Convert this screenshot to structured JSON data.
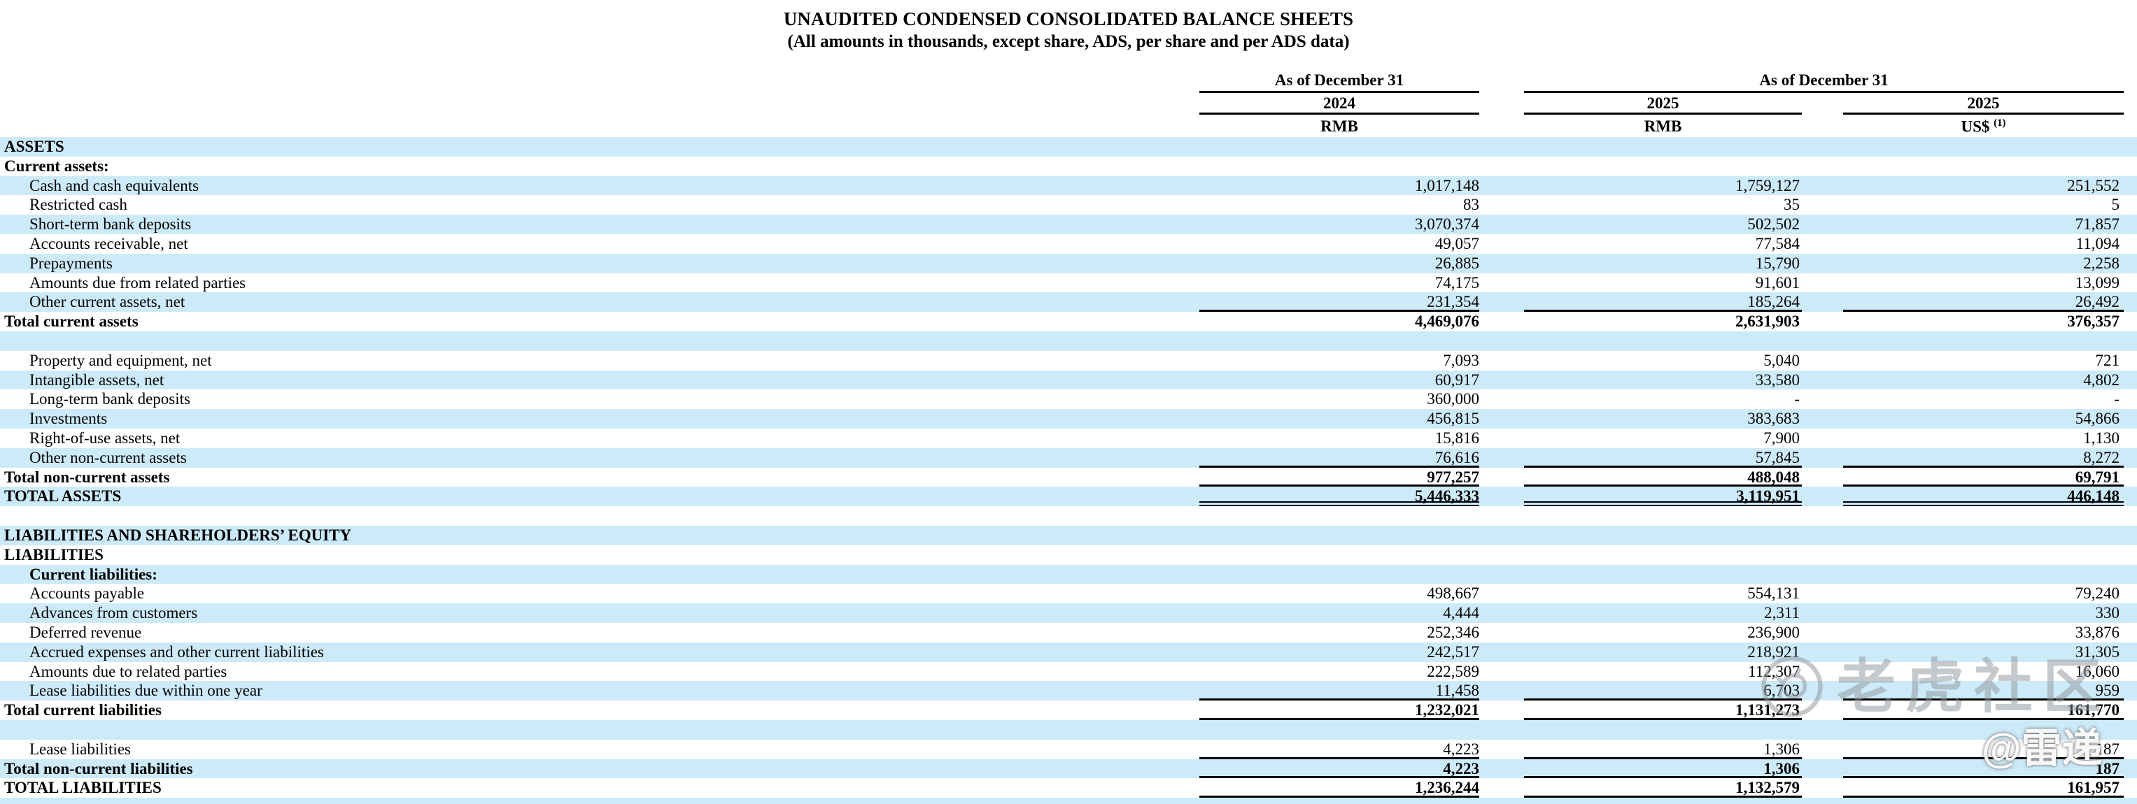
{
  "title": "UNAUDITED CONDENSED CONSOLIDATED BALANCE SHEETS",
  "subtitle": "(All amounts in thousands, except share, ADS, per share and per ADS data)",
  "table": {
    "group1_label": "As of December 31",
    "group2_label": "As of December 31",
    "col1_year": "2024",
    "col2_year": "2025",
    "col3_year": "2025",
    "col1_currency": "RMB",
    "col2_currency": "RMB",
    "col3_currency": "US$",
    "col3_footnote": "(1)",
    "rows": [
      {
        "label": "ASSETS",
        "v1": "",
        "v2": "",
        "v3": "",
        "shaded": true,
        "bold": true,
        "indent": false,
        "rule": "none"
      },
      {
        "label": "Current assets:",
        "v1": "",
        "v2": "",
        "v3": "",
        "shaded": false,
        "bold": true,
        "indent": false,
        "rule": "none"
      },
      {
        "label": "Cash and cash equivalents",
        "v1": "1,017,148",
        "v2": "1,759,127",
        "v3": "251,552",
        "shaded": true,
        "bold": false,
        "indent": true,
        "rule": "none"
      },
      {
        "label": "Restricted cash",
        "v1": "83",
        "v2": "35",
        "v3": "5",
        "shaded": false,
        "bold": false,
        "indent": true,
        "rule": "none"
      },
      {
        "label": "Short-term bank deposits",
        "v1": "3,070,374",
        "v2": "502,502",
        "v3": "71,857",
        "shaded": true,
        "bold": false,
        "indent": true,
        "rule": "none"
      },
      {
        "label": "Accounts receivable, net",
        "v1": "49,057",
        "v2": "77,584",
        "v3": "11,094",
        "shaded": false,
        "bold": false,
        "indent": true,
        "rule": "none"
      },
      {
        "label": "Prepayments",
        "v1": "26,885",
        "v2": "15,790",
        "v3": "2,258",
        "shaded": true,
        "bold": false,
        "indent": true,
        "rule": "none"
      },
      {
        "label": "Amounts due from related parties",
        "v1": "74,175",
        "v2": "91,601",
        "v3": "13,099",
        "shaded": false,
        "bold": false,
        "indent": true,
        "rule": "none"
      },
      {
        "label": "Other current assets, net",
        "v1": "231,354",
        "v2": "185,264",
        "v3": "26,492",
        "shaded": true,
        "bold": false,
        "indent": true,
        "rule": "single"
      },
      {
        "label": "Total current assets",
        "v1": "4,469,076",
        "v2": "2,631,903",
        "v3": "376,357",
        "shaded": false,
        "bold": true,
        "indent": false,
        "rule": "none"
      },
      {
        "label": "",
        "v1": "",
        "v2": "",
        "v3": "",
        "shaded": true,
        "bold": false,
        "indent": false,
        "rule": "none"
      },
      {
        "label": "Property and equipment, net",
        "v1": "7,093",
        "v2": "5,040",
        "v3": "721",
        "shaded": false,
        "bold": false,
        "indent": true,
        "rule": "none"
      },
      {
        "label": "Intangible assets, net",
        "v1": "60,917",
        "v2": "33,580",
        "v3": "4,802",
        "shaded": true,
        "bold": false,
        "indent": true,
        "rule": "none"
      },
      {
        "label": "Long-term bank deposits",
        "v1": "360,000",
        "v2": "-",
        "v3": "-",
        "shaded": false,
        "bold": false,
        "indent": true,
        "rule": "none"
      },
      {
        "label": "Investments",
        "v1": "456,815",
        "v2": "383,683",
        "v3": "54,866",
        "shaded": true,
        "bold": false,
        "indent": true,
        "rule": "none"
      },
      {
        "label": "Right-of-use assets, net",
        "v1": "15,816",
        "v2": "7,900",
        "v3": "1,130",
        "shaded": false,
        "bold": false,
        "indent": true,
        "rule": "none"
      },
      {
        "label": "Other non-current assets",
        "v1": "76,616",
        "v2": "57,845",
        "v3": "8,272",
        "shaded": true,
        "bold": false,
        "indent": true,
        "rule": "single"
      },
      {
        "label": "Total non-current assets",
        "v1": "977,257",
        "v2": "488,048",
        "v3": "69,791",
        "shaded": false,
        "bold": true,
        "indent": false,
        "rule": "single"
      },
      {
        "label": "TOTAL ASSETS",
        "v1": "5,446,333",
        "v2": "3,119,951",
        "v3": "446,148",
        "shaded": true,
        "bold": true,
        "indent": false,
        "rule": "double"
      },
      {
        "label": "",
        "v1": "",
        "v2": "",
        "v3": "",
        "shaded": false,
        "bold": false,
        "indent": false,
        "rule": "none"
      },
      {
        "label": "LIABILITIES AND SHAREHOLDERS’ EQUITY",
        "v1": "",
        "v2": "",
        "v3": "",
        "shaded": true,
        "bold": true,
        "indent": false,
        "rule": "none"
      },
      {
        "label": "LIABILITIES",
        "v1": "",
        "v2": "",
        "v3": "",
        "shaded": false,
        "bold": true,
        "indent": false,
        "rule": "none"
      },
      {
        "label": "Current liabilities:",
        "v1": "",
        "v2": "",
        "v3": "",
        "shaded": true,
        "bold": true,
        "indent": true,
        "rule": "none"
      },
      {
        "label": "Accounts payable",
        "v1": "498,667",
        "v2": "554,131",
        "v3": "79,240",
        "shaded": false,
        "bold": false,
        "indent": true,
        "rule": "none"
      },
      {
        "label": "Advances from customers",
        "v1": "4,444",
        "v2": "2,311",
        "v3": "330",
        "shaded": true,
        "bold": false,
        "indent": true,
        "rule": "none"
      },
      {
        "label": "Deferred revenue",
        "v1": "252,346",
        "v2": "236,900",
        "v3": "33,876",
        "shaded": false,
        "bold": false,
        "indent": true,
        "rule": "none"
      },
      {
        "label": "Accrued expenses and other current liabilities",
        "v1": "242,517",
        "v2": "218,921",
        "v3": "31,305",
        "shaded": true,
        "bold": false,
        "indent": true,
        "rule": "none"
      },
      {
        "label": "Amounts due to related parties",
        "v1": "222,589",
        "v2": "112,307",
        "v3": "16,060",
        "shaded": false,
        "bold": false,
        "indent": true,
        "rule": "none"
      },
      {
        "label": "Lease liabilities due within one year",
        "v1": "11,458",
        "v2": "6,703",
        "v3": "959",
        "shaded": true,
        "bold": false,
        "indent": true,
        "rule": "single"
      },
      {
        "label": "Total current liabilities",
        "v1": "1,232,021",
        "v2": "1,131,273",
        "v3": "161,770",
        "shaded": false,
        "bold": true,
        "indent": false,
        "rule": "single"
      },
      {
        "label": "",
        "v1": "",
        "v2": "",
        "v3": "",
        "shaded": true,
        "bold": false,
        "indent": false,
        "rule": "none"
      },
      {
        "label": "Lease liabilities",
        "v1": "4,223",
        "v2": "1,306",
        "v3": "187",
        "shaded": false,
        "bold": false,
        "indent": true,
        "rule": "single"
      },
      {
        "label": "Total non-current liabilities",
        "v1": "4,223",
        "v2": "1,306",
        "v3": "187",
        "shaded": true,
        "bold": true,
        "indent": false,
        "rule": "single"
      },
      {
        "label": "TOTAL LIABILITIES",
        "v1": "1,236,244",
        "v2": "1,132,579",
        "v3": "161,957",
        "shaded": false,
        "bold": true,
        "indent": false,
        "rule": "single"
      }
    ]
  },
  "watermarks": {
    "community": "老虎社区",
    "author": "@雷递"
  },
  "colors": {
    "row_highlight": "#cdeaf9",
    "rule": "#000000",
    "watermark_gray": "#8e959b"
  }
}
